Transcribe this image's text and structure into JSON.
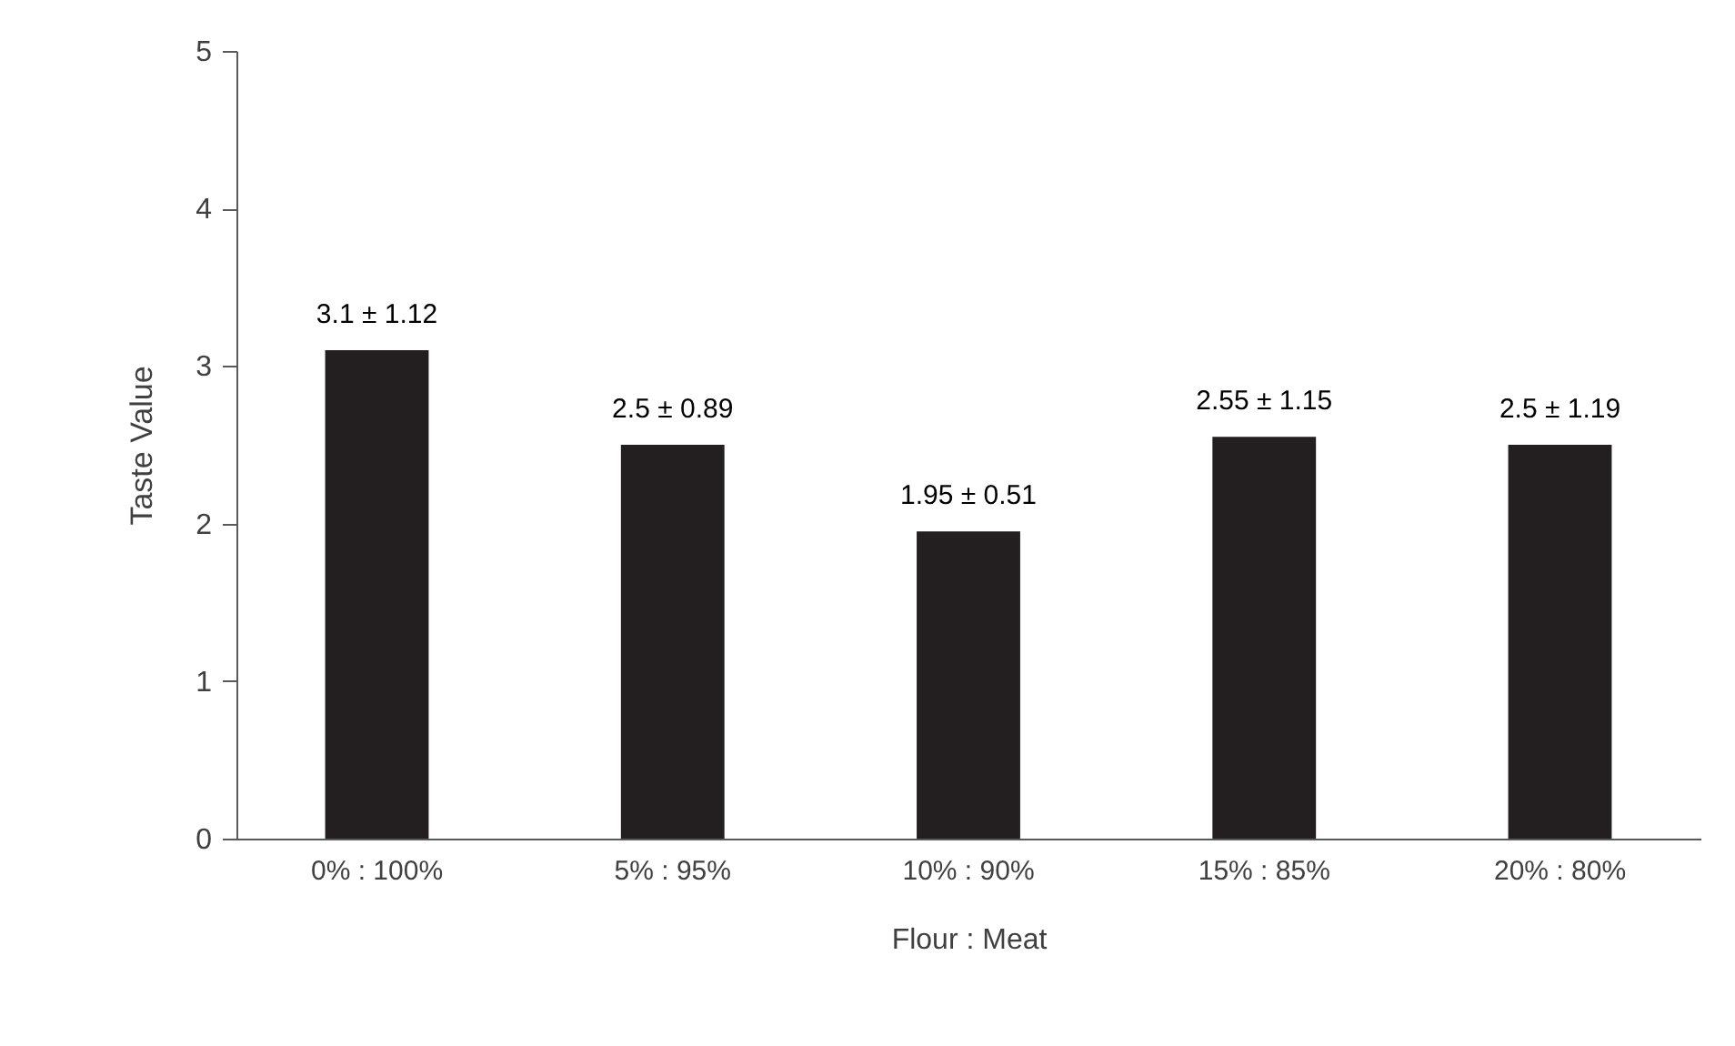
{
  "chart_data": {
    "type": "bar",
    "xlabel": "Flour : Meat",
    "ylabel": "Taste Value",
    "categories": [
      "0% : 100%",
      "5% : 95%",
      "10% : 90%",
      "15% : 85%",
      "20% : 80%"
    ],
    "values": [
      3.1,
      2.5,
      1.95,
      2.55,
      2.5
    ],
    "color": "#231f20",
    "value_labels": [
      "3.1 ± 1.12",
      "2.5 ± 0.89",
      "1.95 ± 0.51",
      "2.55 ± 1.15",
      "2.5 ± 1.19"
    ],
    "ylim": [
      0,
      5
    ],
    "yticks": [
      0,
      1,
      2,
      3,
      4,
      5
    ]
  }
}
